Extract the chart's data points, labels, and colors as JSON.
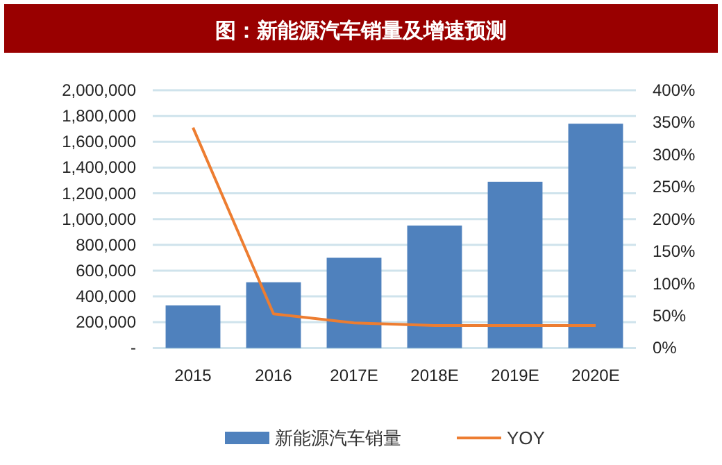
{
  "chart_data": {
    "type": "bar",
    "title": "图：新能源汽车销量及增速预测",
    "categories": [
      "2015",
      "2016",
      "2017E",
      "2018E",
      "2019E",
      "2020E"
    ],
    "series": [
      {
        "name": "新能源汽车销量",
        "color": "#4f81bd",
        "values": [
          330000,
          510000,
          700000,
          950000,
          1290000,
          1740000
        ]
      },
      {
        "name": "YOY",
        "type": "line",
        "axis": "y2",
        "color": "#ed7d31",
        "values": [
          342,
          53,
          39,
          35,
          35,
          35
        ]
      }
    ],
    "ylim": [
      0,
      2000000
    ],
    "yticks": [
      {
        "value": 0,
        "label": "-"
      },
      {
        "value": 200000,
        "label": "200,000"
      },
      {
        "value": 400000,
        "label": "400,000"
      },
      {
        "value": 600000,
        "label": "600,000"
      },
      {
        "value": 800000,
        "label": "800,000"
      },
      {
        "value": 1000000,
        "label": "1,000,000"
      },
      {
        "value": 1200000,
        "label": "1,200,000"
      },
      {
        "value": 1400000,
        "label": "1,400,000"
      },
      {
        "value": 1600000,
        "label": "1,600,000"
      },
      {
        "value": 1800000,
        "label": "1,800,000"
      },
      {
        "value": 2000000,
        "label": "2,000,000"
      }
    ],
    "y2lim": [
      0,
      400
    ],
    "y2ticks": [
      {
        "value": 0,
        "label": "0%"
      },
      {
        "value": 50,
        "label": "50%"
      },
      {
        "value": 100,
        "label": "100%"
      },
      {
        "value": 150,
        "label": "150%"
      },
      {
        "value": 200,
        "label": "200%"
      },
      {
        "value": 250,
        "label": "250%"
      },
      {
        "value": 300,
        "label": "300%"
      },
      {
        "value": 350,
        "label": "350%"
      },
      {
        "value": 400,
        "label": "400%"
      }
    ],
    "grid": "y",
    "legend": "bottom",
    "marker": "none",
    "line_style": "solid"
  }
}
